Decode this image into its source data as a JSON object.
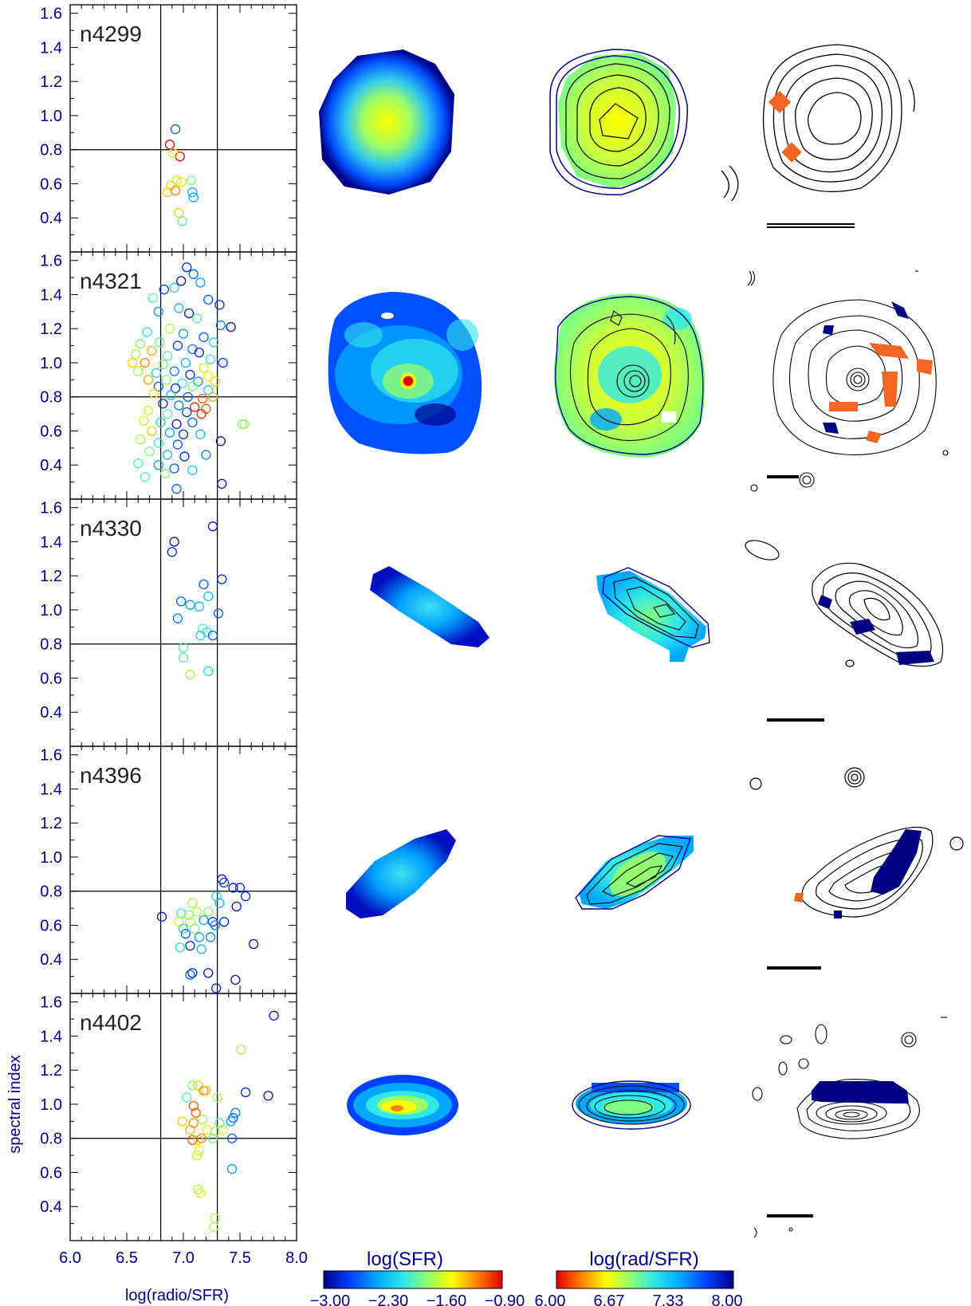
{
  "chart_data": {
    "type": "scatter",
    "xlabel": "log(radio/SFR)",
    "ylabel": "spectral index",
    "xlim": [
      6.0,
      8.0
    ],
    "ylim": [
      0.2,
      1.65
    ],
    "x_ticks": [
      "6.0",
      "6.5",
      "7.0",
      "7.5",
      "8.0"
    ],
    "y_ticks": [
      "0.4",
      "0.6",
      "0.8",
      "1.0",
      "1.2",
      "1.4",
      "1.6"
    ],
    "reference_lines": {
      "x": [
        6.8,
        7.3
      ],
      "y": 0.8
    },
    "panels": [
      {
        "galaxy": "n4299",
        "points": [
          [
            6.93,
            0.92,
            7.6
          ],
          [
            6.88,
            0.83,
            5.8
          ],
          [
            6.97,
            0.76,
            6.0
          ],
          [
            6.91,
            0.78,
            6.6
          ],
          [
            6.98,
            0.61,
            6.6
          ],
          [
            6.94,
            0.62,
            6.7
          ],
          [
            6.89,
            0.59,
            6.5
          ],
          [
            6.86,
            0.55,
            6.5
          ],
          [
            6.93,
            0.56,
            6.3
          ],
          [
            7.07,
            0.62,
            6.9
          ],
          [
            7.08,
            0.55,
            7.3
          ],
          [
            7.09,
            0.52,
            7.4
          ],
          [
            6.96,
            0.43,
            6.5
          ],
          [
            6.99,
            0.38,
            7.0
          ]
        ]
      },
      {
        "galaxy": "n4321",
        "points": [
          [
            7.03,
            1.56,
            7.8
          ],
          [
            7.09,
            1.52,
            7.6
          ],
          [
            6.98,
            1.48,
            7.9
          ],
          [
            7.15,
            1.47,
            7.4
          ],
          [
            6.83,
            1.43,
            7.7
          ],
          [
            6.92,
            1.44,
            7.2
          ],
          [
            6.73,
            1.38,
            7.0
          ],
          [
            7.22,
            1.37,
            7.6
          ],
          [
            7.32,
            1.34,
            7.8
          ],
          [
            6.78,
            1.3,
            7.4
          ],
          [
            6.96,
            1.32,
            7.3
          ],
          [
            7.05,
            1.29,
            7.9
          ],
          [
            7.12,
            1.26,
            7.0
          ],
          [
            7.42,
            1.21,
            7.9
          ],
          [
            7.33,
            1.22,
            7.5
          ],
          [
            6.68,
            1.18,
            7.1
          ],
          [
            6.88,
            1.2,
            6.8
          ],
          [
            7.0,
            1.17,
            7.4
          ],
          [
            7.18,
            1.15,
            7.6
          ],
          [
            7.27,
            1.12,
            7.2
          ],
          [
            6.62,
            1.11,
            6.9
          ],
          [
            6.79,
            1.12,
            7.0
          ],
          [
            6.95,
            1.1,
            7.7
          ],
          [
            7.08,
            1.08,
            7.5
          ],
          [
            6.58,
            1.05,
            6.8
          ],
          [
            6.72,
            1.07,
            6.4
          ],
          [
            6.86,
            1.04,
            7.0
          ],
          [
            7.14,
            1.06,
            7.8
          ],
          [
            7.24,
            1.02,
            7.1
          ],
          [
            7.35,
            1.0,
            7.7
          ],
          [
            6.55,
            1.0,
            6.5
          ],
          [
            6.66,
            1.0,
            6.3
          ],
          [
            6.82,
            0.99,
            6.9
          ],
          [
            7.02,
            1.0,
            7.3
          ],
          [
            7.18,
            0.97,
            6.7
          ],
          [
            6.6,
            0.95,
            6.8
          ],
          [
            6.76,
            0.94,
            7.2
          ],
          [
            6.92,
            0.95,
            7.5
          ],
          [
            7.06,
            0.93,
            7.8
          ],
          [
            7.22,
            0.92,
            6.6
          ],
          [
            6.69,
            0.9,
            6.4
          ],
          [
            6.85,
            0.9,
            6.9
          ],
          [
            6.99,
            0.88,
            7.1
          ],
          [
            7.13,
            0.89,
            7.4
          ],
          [
            7.28,
            0.89,
            6.5
          ],
          [
            6.78,
            0.86,
            7.6
          ],
          [
            6.93,
            0.85,
            7.8
          ],
          [
            7.08,
            0.86,
            6.9
          ],
          [
            7.22,
            0.84,
            7.2
          ],
          [
            6.74,
            0.82,
            6.6
          ],
          [
            6.89,
            0.81,
            7.3
          ],
          [
            7.04,
            0.8,
            7.6
          ],
          [
            7.17,
            0.79,
            6.2
          ],
          [
            7.26,
            0.8,
            6.4
          ],
          [
            6.82,
            0.76,
            7.8
          ],
          [
            6.96,
            0.75,
            7.5
          ],
          [
            7.1,
            0.74,
            6.1
          ],
          [
            7.2,
            0.73,
            6.2
          ],
          [
            6.69,
            0.72,
            6.7
          ],
          [
            6.86,
            0.7,
            7.0
          ],
          [
            7.03,
            0.71,
            7.7
          ],
          [
            7.16,
            0.7,
            6.1
          ],
          [
            6.65,
            0.66,
            6.6
          ],
          [
            6.8,
            0.65,
            7.2
          ],
          [
            6.94,
            0.64,
            7.9
          ],
          [
            7.08,
            0.65,
            7.6
          ],
          [
            7.52,
            0.64,
            6.9
          ],
          [
            7.54,
            0.64,
            6.8
          ],
          [
            6.72,
            0.6,
            6.5
          ],
          [
            6.88,
            0.59,
            7.4
          ],
          [
            7.0,
            0.58,
            7.8
          ],
          [
            7.15,
            0.58,
            7.3
          ],
          [
            6.62,
            0.55,
            6.8
          ],
          [
            6.78,
            0.53,
            7.1
          ],
          [
            6.95,
            0.52,
            7.6
          ],
          [
            7.33,
            0.54,
            7.9
          ],
          [
            6.7,
            0.48,
            6.9
          ],
          [
            6.86,
            0.46,
            7.3
          ],
          [
            7.01,
            0.45,
            7.8
          ],
          [
            7.2,
            0.46,
            7.5
          ],
          [
            6.6,
            0.41,
            7.0
          ],
          [
            6.78,
            0.4,
            7.4
          ],
          [
            6.92,
            0.38,
            7.6
          ],
          [
            7.08,
            0.37,
            7.2
          ],
          [
            6.66,
            0.33,
            7.0
          ],
          [
            6.84,
            0.35,
            6.9
          ],
          [
            7.34,
            0.29,
            7.9
          ],
          [
            6.94,
            0.26,
            7.6
          ]
        ]
      },
      {
        "galaxy": "n4330",
        "points": [
          [
            6.92,
            1.4,
            7.9
          ],
          [
            6.9,
            1.34,
            7.8
          ],
          [
            7.26,
            1.49,
            7.9
          ],
          [
            7.18,
            1.15,
            7.6
          ],
          [
            7.34,
            1.18,
            7.8
          ],
          [
            7.22,
            1.08,
            7.3
          ],
          [
            6.98,
            1.05,
            7.6
          ],
          [
            7.06,
            1.03,
            7.4
          ],
          [
            7.14,
            1.02,
            7.3
          ],
          [
            7.31,
            0.98,
            7.6
          ],
          [
            6.95,
            0.95,
            7.5
          ],
          [
            7.17,
            0.89,
            7.0
          ],
          [
            7.21,
            0.87,
            7.1
          ],
          [
            7.15,
            0.85,
            7.2
          ],
          [
            7.26,
            0.85,
            7.6
          ],
          [
            7.0,
            0.78,
            7.0
          ],
          [
            7.0,
            0.72,
            7.0
          ],
          [
            7.22,
            0.64,
            7.2
          ],
          [
            7.06,
            0.62,
            6.8
          ]
        ]
      },
      {
        "galaxy": "n4396",
        "points": [
          [
            7.34,
            0.87,
            7.9
          ],
          [
            7.36,
            0.85,
            7.7
          ],
          [
            7.44,
            0.82,
            7.9
          ],
          [
            7.5,
            0.82,
            7.8
          ],
          [
            7.55,
            0.77,
            7.8
          ],
          [
            7.29,
            0.77,
            7.1
          ],
          [
            7.32,
            0.73,
            7.3
          ],
          [
            7.47,
            0.71,
            7.9
          ],
          [
            7.08,
            0.73,
            6.8
          ],
          [
            7.12,
            0.68,
            6.7
          ],
          [
            7.22,
            0.68,
            6.9
          ],
          [
            6.98,
            0.67,
            7.1
          ],
          [
            7.05,
            0.66,
            6.9
          ],
          [
            7.06,
            0.62,
            6.7
          ],
          [
            6.96,
            0.62,
            6.6
          ],
          [
            7.18,
            0.63,
            7.4
          ],
          [
            7.26,
            0.62,
            7.7
          ],
          [
            7.36,
            0.62,
            7.8
          ],
          [
            7.28,
            0.6,
            7.5
          ],
          [
            7.0,
            0.58,
            7.2
          ],
          [
            7.1,
            0.58,
            6.9
          ],
          [
            6.81,
            0.65,
            7.9
          ],
          [
            7.02,
            0.55,
            7.6
          ],
          [
            7.14,
            0.53,
            7.4
          ],
          [
            7.24,
            0.53,
            7.5
          ],
          [
            7.06,
            0.48,
            7.8
          ],
          [
            7.16,
            0.46,
            7.3
          ],
          [
            6.97,
            0.47,
            7.1
          ],
          [
            7.62,
            0.49,
            7.9
          ],
          [
            7.08,
            0.32,
            7.8
          ],
          [
            7.06,
            0.31,
            7.6
          ],
          [
            7.22,
            0.32,
            7.9
          ],
          [
            7.46,
            0.28,
            7.9
          ],
          [
            7.29,
            0.23,
            7.8
          ]
        ]
      },
      {
        "galaxy": "n4402",
        "points": [
          [
            7.8,
            1.52,
            7.9
          ],
          [
            7.51,
            1.32,
            6.8
          ],
          [
            7.08,
            1.11,
            6.9
          ],
          [
            7.13,
            1.11,
            6.5
          ],
          [
            7.18,
            1.08,
            6.3
          ],
          [
            7.2,
            1.08,
            6.5
          ],
          [
            7.55,
            1.07,
            7.8
          ],
          [
            7.75,
            1.05,
            7.9
          ],
          [
            7.3,
            1.04,
            6.8
          ],
          [
            7.03,
            1.04,
            7.0
          ],
          [
            7.09,
            0.99,
            6.2
          ],
          [
            7.11,
            0.95,
            6.2
          ],
          [
            7.46,
            0.95,
            7.5
          ],
          [
            7.44,
            0.92,
            7.6
          ],
          [
            7.17,
            0.91,
            6.8
          ],
          [
            7.09,
            0.89,
            6.3
          ],
          [
            7.32,
            0.89,
            7.0
          ],
          [
            7.42,
            0.9,
            7.4
          ],
          [
            6.99,
            0.9,
            6.5
          ],
          [
            7.06,
            0.85,
            6.4
          ],
          [
            7.21,
            0.85,
            6.6
          ],
          [
            7.28,
            0.84,
            6.8
          ],
          [
            7.35,
            0.85,
            6.7
          ],
          [
            7.16,
            0.8,
            6.3
          ],
          [
            7.26,
            0.8,
            6.9
          ],
          [
            7.43,
            0.8,
            7.6
          ],
          [
            7.08,
            0.79,
            6.2
          ],
          [
            7.13,
            0.79,
            6.5
          ],
          [
            7.14,
            0.73,
            6.6
          ],
          [
            7.12,
            0.7,
            6.7
          ],
          [
            7.43,
            0.62,
            7.4
          ],
          [
            7.13,
            0.5,
            6.8
          ],
          [
            7.15,
            0.48,
            6.6
          ],
          [
            7.28,
            0.33,
            6.8
          ],
          [
            7.27,
            0.28,
            6.8
          ]
        ]
      }
    ],
    "colorbars": [
      {
        "label": "log(SFR)",
        "ticks": [
          "−3.00",
          "−2.30",
          "−1.60",
          "−0.90"
        ],
        "range": [
          -3.0,
          -0.9
        ],
        "low_color": "#00008b",
        "high_color": "#ff0000"
      },
      {
        "label": "log(rad/SFR)",
        "ticks": [
          "6.00",
          "6.67",
          "7.33",
          "8.00"
        ],
        "range": [
          6.0,
          8.0
        ],
        "low_color": "#ff0000",
        "high_color": "#00008b"
      }
    ],
    "colors": {
      "label_text": "#00008b",
      "steep_spectrum_region": "#f26522",
      "flat_spectrum_region": "#000080",
      "contour_blue": "#00008b",
      "contour_black": "#000000"
    }
  }
}
